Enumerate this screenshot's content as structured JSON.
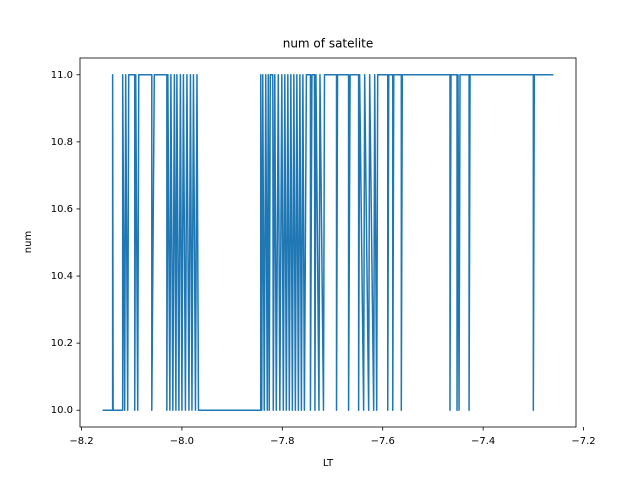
{
  "chart_data": {
    "type": "line",
    "title": "num of satelite",
    "x_label": "LT",
    "y_label": "num",
    "series": [
      {
        "color": "#1f77b4",
        "x": [
          -8.158,
          -8.138,
          -8.138,
          -8.137,
          -8.118,
          -8.118,
          -8.114,
          -8.112,
          -8.108,
          -8.106,
          -8.094,
          -8.094,
          -8.092,
          -8.088,
          -8.086,
          -8.06,
          -8.06,
          -8.055,
          -8.03,
          -8.03,
          -8.028,
          -8.024,
          -8.022,
          -8.018,
          -8.015,
          -8.012,
          -8.01,
          -8.006,
          -8.003,
          -8.0,
          -7.997,
          -7.993,
          -7.99,
          -7.986,
          -7.983,
          -7.98,
          -7.977,
          -7.973,
          -7.97,
          -7.967,
          -7.843,
          -7.843,
          -7.841,
          -7.839,
          -7.836,
          -7.833,
          -7.83,
          -7.828,
          -7.826,
          -7.824,
          -7.819,
          -7.818,
          -7.815,
          -7.812,
          -7.808,
          -7.805,
          -7.801,
          -7.798,
          -7.795,
          -7.792,
          -7.789,
          -7.786,
          -7.783,
          -7.78,
          -7.777,
          -7.774,
          -7.771,
          -7.768,
          -7.765,
          -7.762,
          -7.759,
          -7.756,
          -7.752,
          -7.744,
          -7.744,
          -7.741,
          -7.736,
          -7.735,
          -7.733,
          -7.727,
          -7.725,
          -7.718,
          -7.716,
          -7.692,
          -7.692,
          -7.69,
          -7.668,
          -7.668,
          -7.665,
          -7.648,
          -7.648,
          -7.646,
          -7.638,
          -7.636,
          -7.628,
          -7.626,
          -7.618,
          -7.616,
          -7.612,
          -7.61,
          -7.59,
          -7.59,
          -7.588,
          -7.58,
          -7.58,
          -7.578,
          -7.563,
          -7.563,
          -7.561,
          -7.466,
          -7.466,
          -7.464,
          -7.452,
          -7.452,
          -7.45,
          -7.448,
          -7.446,
          -7.428,
          -7.428,
          -7.426,
          -7.3,
          -7.3,
          -7.298,
          -7.26
        ],
        "values": [
          10,
          10,
          11,
          10,
          10,
          11,
          10,
          11,
          10,
          11,
          11,
          10,
          11,
          10,
          11,
          11,
          10,
          11,
          11,
          10,
          11,
          10,
          11,
          10,
          11,
          10,
          11,
          10,
          11,
          10,
          11,
          10,
          11,
          10,
          11,
          10,
          11,
          10,
          11,
          10,
          10,
          11,
          10,
          11,
          10,
          11,
          10,
          11,
          10,
          11,
          11,
          10,
          11,
          10,
          11,
          10,
          11,
          10,
          11,
          10,
          11,
          10,
          11,
          10,
          11,
          10,
          11,
          10,
          11,
          10,
          11,
          10,
          11,
          11,
          10,
          11,
          11,
          10,
          11,
          10,
          11,
          10,
          11,
          11,
          10,
          11,
          11,
          10,
          11,
          11,
          10,
          11,
          10,
          11,
          10,
          11,
          10,
          11,
          10,
          11,
          11,
          10,
          11,
          11,
          10,
          11,
          11,
          10,
          11,
          11,
          10,
          11,
          11,
          10,
          11,
          10,
          11,
          11,
          10,
          11,
          11,
          10,
          11,
          11
        ]
      }
    ],
    "xlim": [
      -8.203,
      -7.215
    ],
    "ylim": [
      9.95,
      11.05
    ],
    "xticks": [
      {
        "value": -8.2,
        "label": "−8.2"
      },
      {
        "value": -8.0,
        "label": "−8.0"
      },
      {
        "value": -7.8,
        "label": "−7.8"
      },
      {
        "value": -7.6,
        "label": "−7.6"
      },
      {
        "value": -7.4,
        "label": "−7.4"
      },
      {
        "value": -7.2,
        "label": "−7.2"
      }
    ],
    "yticks": [
      {
        "value": 10,
        "label": "10.0"
      },
      10.2,
      10.4,
      10.6,
      10.8,
      {
        "value": 11,
        "label": "11.0"
      }
    ],
    "grid": false
  }
}
